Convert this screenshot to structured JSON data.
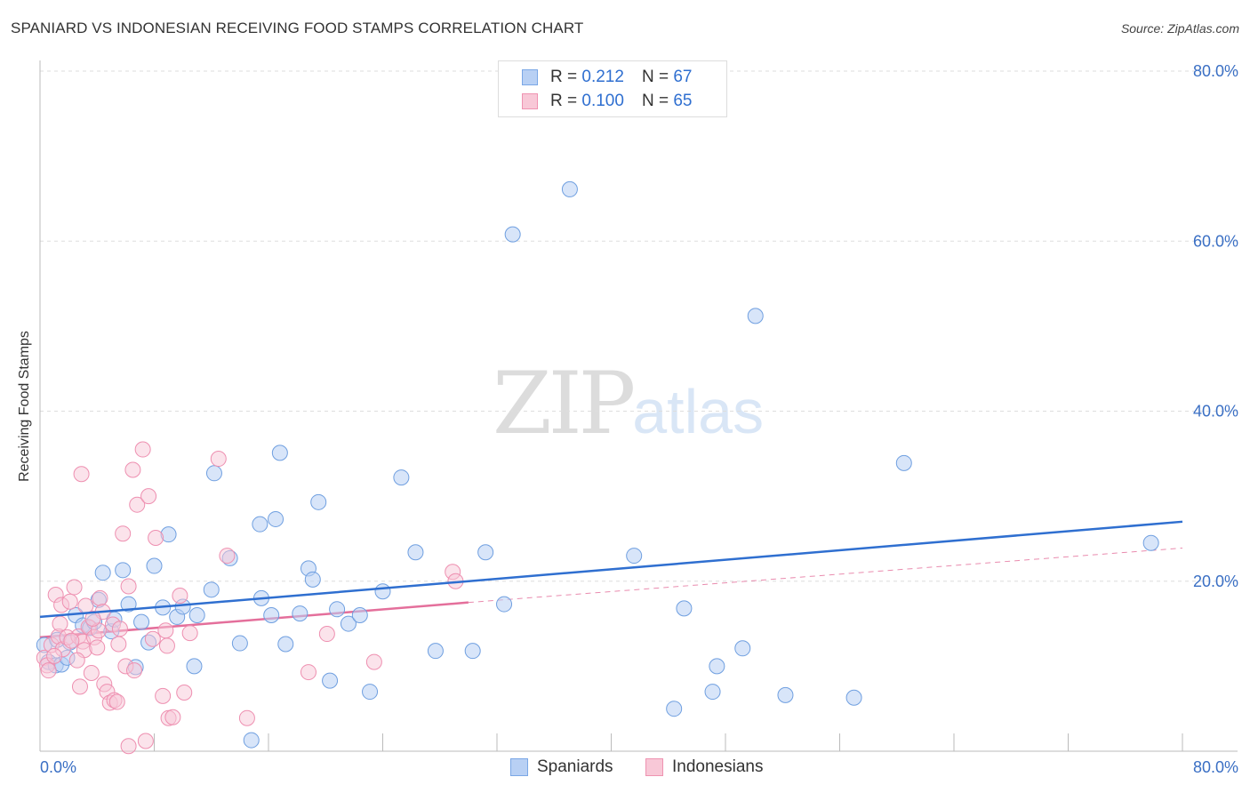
{
  "title": "SPANIARD VS INDONESIAN RECEIVING FOOD STAMPS CORRELATION CHART",
  "source": "Source: ZipAtlas.com",
  "watermark": {
    "zip": "ZIP",
    "atlas": "atlas"
  },
  "legend_top": [
    {
      "r_label": "R = ",
      "r_value": "0.212",
      "n_label": "N = ",
      "n_value": "67"
    },
    {
      "r_label": "R = ",
      "r_value": "0.100",
      "n_label": "N = ",
      "n_value": "65"
    }
  ],
  "legend_bottom": [
    "Spaniards",
    "Indonesians"
  ],
  "colors": {
    "blue": "#2f6fd0",
    "blue_fill": "#b8d0f4",
    "pink": "#e46f9b",
    "pink_fill": "#f8c8d7",
    "axis_label": "#3a6fc4"
  },
  "chart_data": {
    "type": "scatter",
    "title": "SPANIARD VS INDONESIAN RECEIVING FOOD STAMPS CORRELATION CHART",
    "xlabel": "",
    "ylabel": "Receiving Food Stamps",
    "xlim": [
      0,
      80
    ],
    "ylim": [
      0,
      80
    ],
    "y_ticks": [
      "20.0%",
      "40.0%",
      "60.0%",
      "80.0%"
    ],
    "x_ticks": [
      "0.0%",
      "80.0%"
    ],
    "series": [
      {
        "name": "Spaniards",
        "r": 0.212,
        "n": 67,
        "trend": {
          "x": [
            0,
            80
          ],
          "y": [
            15.8,
            27.0
          ]
        },
        "points": [
          [
            0.3,
            12.5
          ],
          [
            0.6,
            10.5
          ],
          [
            1.1,
            10.1
          ],
          [
            1.5,
            10.2
          ],
          [
            1.9,
            11.0
          ],
          [
            2.1,
            12.8
          ],
          [
            2.5,
            16.0
          ],
          [
            3.0,
            14.8
          ],
          [
            3.5,
            14.5
          ],
          [
            3.8,
            15.2
          ],
          [
            4.1,
            17.8
          ],
          [
            4.4,
            21.0
          ],
          [
            5.0,
            14.1
          ],
          [
            5.2,
            15.5
          ],
          [
            5.8,
            21.3
          ],
          [
            6.2,
            17.3
          ],
          [
            6.7,
            9.9
          ],
          [
            7.1,
            15.2
          ],
          [
            7.6,
            12.8
          ],
          [
            8.0,
            21.8
          ],
          [
            8.6,
            16.9
          ],
          [
            9.0,
            25.5
          ],
          [
            9.6,
            15.8
          ],
          [
            10.0,
            17.0
          ],
          [
            10.8,
            10.0
          ],
          [
            11.0,
            16.0
          ],
          [
            12.0,
            19.0
          ],
          [
            12.2,
            32.7
          ],
          [
            13.3,
            22.7
          ],
          [
            14.0,
            12.7
          ],
          [
            14.8,
            1.3
          ],
          [
            15.5,
            18.0
          ],
          [
            16.2,
            16.0
          ],
          [
            17.2,
            12.6
          ],
          [
            18.2,
            16.2
          ],
          [
            18.8,
            21.5
          ],
          [
            19.5,
            29.3
          ],
          [
            20.3,
            8.3
          ],
          [
            20.8,
            16.7
          ],
          [
            21.6,
            15.0
          ],
          [
            22.4,
            16.0
          ],
          [
            23.1,
            7.0
          ],
          [
            24.0,
            18.8
          ],
          [
            25.3,
            32.2
          ],
          [
            26.3,
            23.4
          ],
          [
            16.8,
            35.1
          ],
          [
            15.4,
            26.7
          ],
          [
            16.5,
            27.3
          ],
          [
            19.1,
            20.2
          ],
          [
            27.7,
            11.8
          ],
          [
            30.3,
            11.8
          ],
          [
            31.2,
            23.4
          ],
          [
            32.5,
            17.3
          ],
          [
            33.1,
            60.8
          ],
          [
            37.1,
            66.1
          ],
          [
            41.6,
            23.0
          ],
          [
            44.4,
            5.0
          ],
          [
            45.1,
            16.8
          ],
          [
            47.1,
            7.0
          ],
          [
            47.4,
            10.0
          ],
          [
            49.2,
            12.1
          ],
          [
            50.1,
            51.2
          ],
          [
            52.2,
            6.6
          ],
          [
            57.0,
            6.3
          ],
          [
            60.5,
            33.9
          ],
          [
            77.8,
            24.5
          ],
          [
            1.2,
            13.1
          ]
        ]
      },
      {
        "name": "Indonesians",
        "r": 0.1,
        "n": 65,
        "trend": {
          "x": [
            0,
            30
          ],
          "y": [
            13.4,
            17.5
          ],
          "dashed_extension": {
            "x": [
              30,
              80
            ],
            "y": [
              17.5,
              23.9
            ]
          }
        },
        "points": [
          [
            0.3,
            11.0
          ],
          [
            0.5,
            10.1
          ],
          [
            0.8,
            12.5
          ],
          [
            1.1,
            18.4
          ],
          [
            1.3,
            13.5
          ],
          [
            1.5,
            17.2
          ],
          [
            1.6,
            12.0
          ],
          [
            1.9,
            13.4
          ],
          [
            2.1,
            17.6
          ],
          [
            2.4,
            19.3
          ],
          [
            2.7,
            13.5
          ],
          [
            2.8,
            7.6
          ],
          [
            2.9,
            32.6
          ],
          [
            3.0,
            12.9
          ],
          [
            3.2,
            17.1
          ],
          [
            3.4,
            14.6
          ],
          [
            3.6,
            9.2
          ],
          [
            3.8,
            13.4
          ],
          [
            4.1,
            14.2
          ],
          [
            4.2,
            18.0
          ],
          [
            4.4,
            16.4
          ],
          [
            4.5,
            7.9
          ],
          [
            4.7,
            7.0
          ],
          [
            4.9,
            5.7
          ],
          [
            5.1,
            14.9
          ],
          [
            5.2,
            6.0
          ],
          [
            5.4,
            5.8
          ],
          [
            5.5,
            12.6
          ],
          [
            5.8,
            25.6
          ],
          [
            6.0,
            10.0
          ],
          [
            6.2,
            0.6
          ],
          [
            6.2,
            19.4
          ],
          [
            6.5,
            33.1
          ],
          [
            6.6,
            9.5
          ],
          [
            6.8,
            29.0
          ],
          [
            7.2,
            35.5
          ],
          [
            7.4,
            1.2
          ],
          [
            7.6,
            30.0
          ],
          [
            8.1,
            25.1
          ],
          [
            8.6,
            6.5
          ],
          [
            8.8,
            14.2
          ],
          [
            8.9,
            12.4
          ],
          [
            9.0,
            3.9
          ],
          [
            9.3,
            4.0
          ],
          [
            9.8,
            18.3
          ],
          [
            10.1,
            6.9
          ],
          [
            10.5,
            13.9
          ],
          [
            12.5,
            34.4
          ],
          [
            13.1,
            23.0
          ],
          [
            14.5,
            3.9
          ],
          [
            18.8,
            9.3
          ],
          [
            20.1,
            13.8
          ],
          [
            23.4,
            10.5
          ],
          [
            28.9,
            21.1
          ],
          [
            29.1,
            20.0
          ],
          [
            0.6,
            9.5
          ],
          [
            1.0,
            11.2
          ],
          [
            1.4,
            15.0
          ],
          [
            2.2,
            13.0
          ],
          [
            3.1,
            11.9
          ],
          [
            3.7,
            15.6
          ],
          [
            4.0,
            12.2
          ],
          [
            5.6,
            14.4
          ],
          [
            7.9,
            13.2
          ],
          [
            2.6,
            10.7
          ]
        ]
      }
    ]
  }
}
